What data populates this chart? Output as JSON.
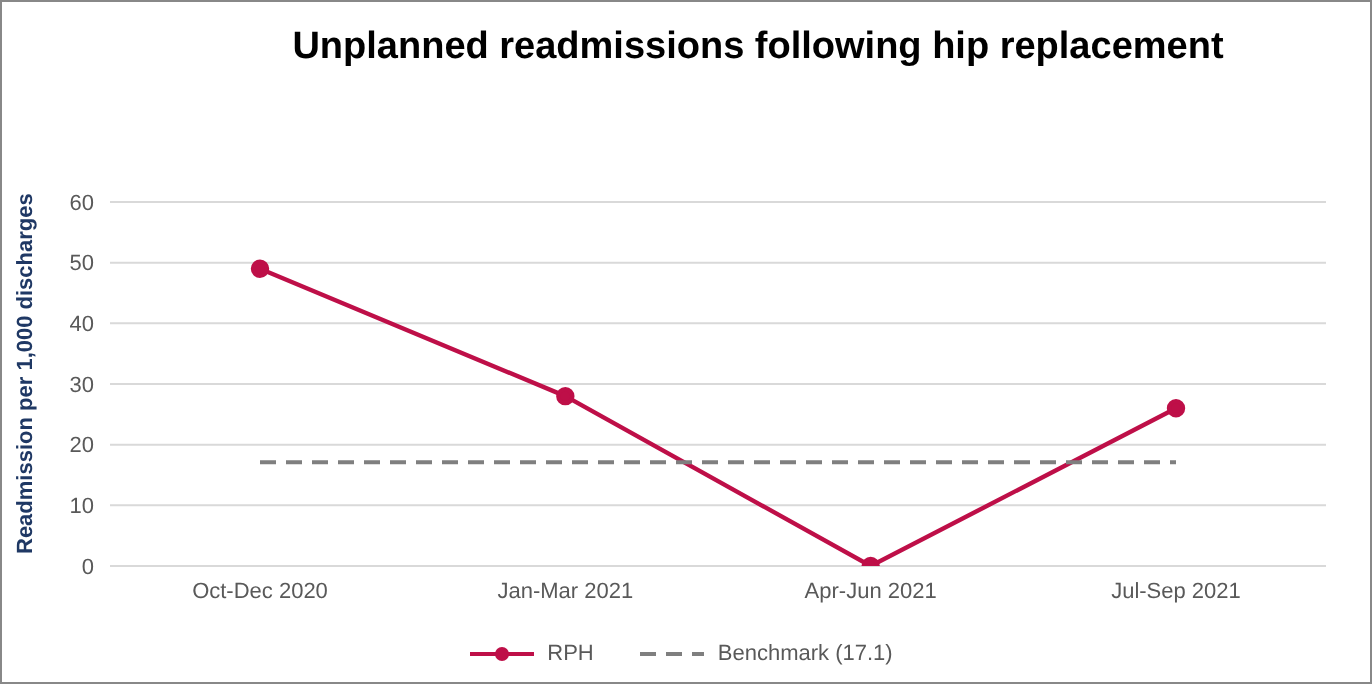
{
  "chart_data": {
    "type": "line",
    "title": "Unplanned readmissions following hip replacement",
    "ylabel": "Readmission  per 1,000 discharges",
    "categories": [
      "Oct-Dec 2020",
      "Jan-Mar 2021",
      "Apr-Jun 2021",
      "Jul-Sep 2021"
    ],
    "series": [
      {
        "name": "RPH",
        "color": "#be0f48",
        "values": [
          49,
          28,
          0,
          26
        ],
        "marker": "circle",
        "line_style": "solid"
      },
      {
        "name": "Benchmark (17.1)",
        "color": "#7f7f7f",
        "values": [
          17.1,
          17.1,
          17.1,
          17.1
        ],
        "marker": "none",
        "line_style": "dashed"
      }
    ],
    "ylim": [
      0,
      60
    ],
    "yticks": [
      0,
      10,
      20,
      30,
      40,
      50,
      60
    ],
    "grid": "y",
    "legend": "bottom"
  }
}
